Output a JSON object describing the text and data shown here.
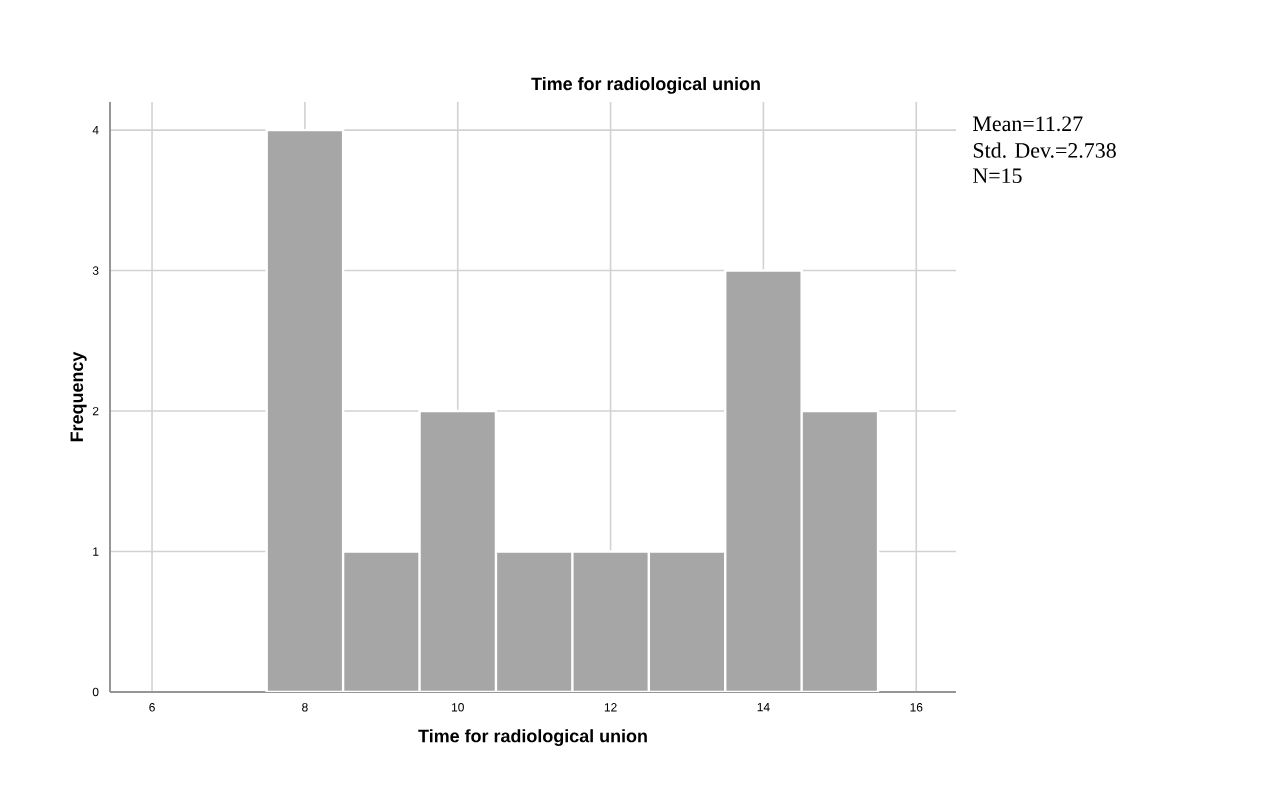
{
  "chart_data": {
    "type": "histogram",
    "title": "Time for radiological union",
    "xlabel": "Time for radiological union",
    "ylabel": "Frequency",
    "bins": [
      7.5,
      8.5,
      9.5,
      10.5,
      11.5,
      12.5,
      13.5,
      14.5,
      15.5
    ],
    "values": [
      4,
      1,
      2,
      1,
      1,
      1,
      3,
      2
    ],
    "color": "#a6a6a6",
    "xlim": [
      5.45,
      16.52
    ],
    "ylim": [
      0,
      4.2
    ],
    "xticks": [
      6,
      8,
      10,
      12,
      14,
      16
    ],
    "yticks": [
      0,
      1,
      2,
      3,
      4
    ],
    "grid": true,
    "annotations": [
      "Mean=11.27",
      "Std. Dev.=2.738",
      "N=15"
    ]
  }
}
